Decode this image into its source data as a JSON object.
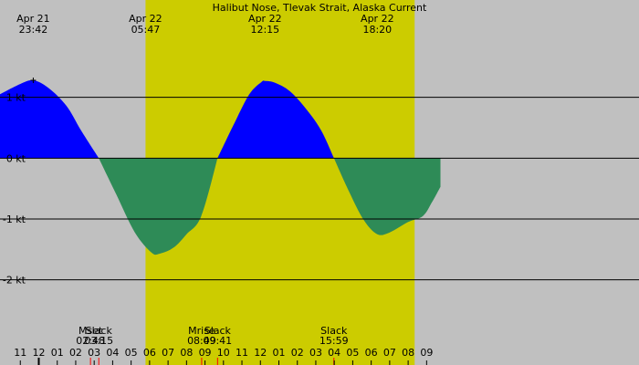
{
  "chart_data": {
    "type": "area",
    "title": "Halibut Nose, Tlevak Strait, Alaska Current",
    "x_axis": {
      "unit": "hour",
      "range_hours": [
        -1.1,
        33.5
      ],
      "tick_labels": [
        {
          "h": 0,
          "label": "11"
        },
        {
          "h": 1,
          "label": "12"
        },
        {
          "h": 2,
          "label": "01"
        },
        {
          "h": 3,
          "label": "02"
        },
        {
          "h": 4,
          "label": "03"
        },
        {
          "h": 5,
          "label": "04"
        },
        {
          "h": 6,
          "label": "05"
        },
        {
          "h": 7,
          "label": "06"
        },
        {
          "h": 8,
          "label": "07"
        },
        {
          "h": 9,
          "label": "08"
        },
        {
          "h": 10,
          "label": "09"
        },
        {
          "h": 11,
          "label": "10"
        },
        {
          "h": 12,
          "label": "11"
        },
        {
          "h": 13,
          "label": "12"
        },
        {
          "h": 14,
          "label": "01"
        },
        {
          "h": 15,
          "label": "02"
        },
        {
          "h": 16,
          "label": "03"
        },
        {
          "h": 17,
          "label": "04"
        },
        {
          "h": 18,
          "label": "05"
        },
        {
          "h": 19,
          "label": "06"
        },
        {
          "h": 20,
          "label": "07"
        },
        {
          "h": 21,
          "label": "08"
        },
        {
          "h": 22,
          "label": "09"
        }
      ]
    },
    "y_axis": {
      "unit": "kt",
      "range": [
        -2.95,
        2.6
      ],
      "gridlines": [
        {
          "v": 1,
          "label": "1 kt"
        },
        {
          "v": 0,
          "label": "0 kt"
        },
        {
          "v": -1,
          "label": "-1 kt"
        },
        {
          "v": -2,
          "label": "-2 kt"
        }
      ]
    },
    "daylight": {
      "start_h": 6.78,
      "end_h": 21.35
    },
    "top_labels": [
      {
        "h": 0.7,
        "date": "Apr 21",
        "time": "23:42"
      },
      {
        "h": 6.78,
        "date": "Apr 22",
        "time": "05:47"
      },
      {
        "h": 13.25,
        "date": "Apr 22",
        "time": "12:15"
      },
      {
        "h": 19.33,
        "date": "Apr 22",
        "time": "18:20"
      }
    ],
    "events": [
      {
        "h": 3.8,
        "name": "Mset",
        "time": "02:48",
        "kind": "moon"
      },
      {
        "h": 4.25,
        "name": "Slack",
        "time": "03:15",
        "kind": "slack"
      },
      {
        "h": 9.82,
        "name": "Mrise",
        "time": "08:49",
        "kind": "moon"
      },
      {
        "h": 10.68,
        "name": "Slack",
        "time": "09:41",
        "kind": "slack"
      },
      {
        "h": 16.98,
        "name": "Slack",
        "time": "15:59",
        "kind": "slack"
      }
    ],
    "series": [
      {
        "kind": "current_knots",
        "points": [
          [
            -1.1,
            1.05
          ],
          [
            0.0,
            1.22
          ],
          [
            0.7,
            1.28
          ],
          [
            1.5,
            1.16
          ],
          [
            2.5,
            0.86
          ],
          [
            3.3,
            0.45
          ],
          [
            4.25,
            0.0
          ],
          [
            5.2,
            -0.6
          ],
          [
            6.2,
            -1.22
          ],
          [
            7.1,
            -1.55
          ],
          [
            7.55,
            -1.57
          ],
          [
            8.3,
            -1.47
          ],
          [
            9.0,
            -1.25
          ],
          [
            9.8,
            -0.95
          ],
          [
            10.68,
            0.0
          ],
          [
            11.6,
            0.58
          ],
          [
            12.4,
            1.05
          ],
          [
            13.05,
            1.25
          ],
          [
            13.25,
            1.27
          ],
          [
            13.8,
            1.24
          ],
          [
            14.6,
            1.1
          ],
          [
            15.5,
            0.8
          ],
          [
            16.3,
            0.45
          ],
          [
            16.98,
            0.0
          ],
          [
            17.8,
            -0.55
          ],
          [
            18.6,
            -1.02
          ],
          [
            19.33,
            -1.25
          ],
          [
            20.0,
            -1.22
          ],
          [
            21.0,
            -1.05
          ],
          [
            21.8,
            -0.95
          ],
          [
            22.3,
            -0.72
          ],
          [
            22.75,
            -0.47
          ]
        ]
      }
    ],
    "colors": {
      "night": "#c0c0c0",
      "day": "#cccc00",
      "flood": "#0000ff",
      "ebb": "#2e8b57",
      "grid": "#000000",
      "moon_tick": "#ff0000"
    }
  }
}
